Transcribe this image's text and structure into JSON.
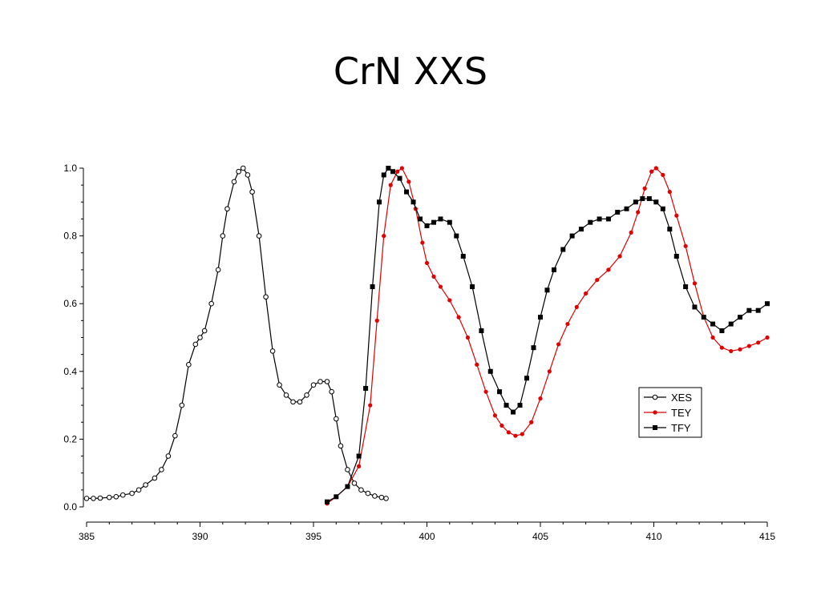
{
  "slide": {
    "title": "CrN XXS"
  },
  "chart_data": {
    "type": "line",
    "title": "",
    "xlabel": "",
    "ylabel": "",
    "xlim": [
      385,
      415
    ],
    "ylim": [
      0,
      1.0
    ],
    "x_ticks": [
      385,
      390,
      395,
      400,
      405,
      410,
      415
    ],
    "y_ticks": [
      "0.0",
      "0.2",
      "0.4",
      "0.6",
      "0.8",
      "1.0"
    ],
    "grid": false,
    "legend": "right",
    "series": [
      {
        "name": "XES",
        "color": "#000000",
        "marker": "open-circle",
        "x": [
          385.0,
          385.3,
          385.6,
          386.0,
          386.3,
          386.6,
          387.0,
          387.3,
          387.6,
          388.0,
          388.3,
          388.6,
          388.9,
          389.2,
          389.5,
          389.8,
          390.0,
          390.2,
          390.5,
          390.8,
          391.0,
          391.2,
          391.5,
          391.7,
          391.9,
          392.1,
          392.3,
          392.6,
          392.9,
          393.2,
          393.5,
          393.8,
          394.1,
          394.4,
          394.7,
          395.0,
          395.3,
          395.6,
          395.8,
          396.0,
          396.2,
          396.5,
          396.8,
          397.1,
          397.4,
          397.7,
          398.0,
          398.2
        ],
        "y": [
          0.025,
          0.025,
          0.026,
          0.028,
          0.03,
          0.035,
          0.04,
          0.05,
          0.065,
          0.085,
          0.11,
          0.15,
          0.21,
          0.3,
          0.42,
          0.48,
          0.5,
          0.52,
          0.6,
          0.7,
          0.8,
          0.88,
          0.96,
          0.99,
          1.0,
          0.98,
          0.93,
          0.8,
          0.62,
          0.46,
          0.36,
          0.33,
          0.31,
          0.31,
          0.33,
          0.36,
          0.37,
          0.37,
          0.34,
          0.26,
          0.18,
          0.11,
          0.07,
          0.05,
          0.04,
          0.032,
          0.028,
          0.025
        ]
      },
      {
        "name": "TEY",
        "color": "#e00000",
        "marker": "filled-circle",
        "x": [
          395.6,
          396.0,
          396.5,
          397.0,
          397.5,
          397.8,
          398.1,
          398.4,
          398.7,
          398.9,
          399.2,
          399.5,
          399.8,
          400.0,
          400.3,
          400.6,
          401.0,
          401.4,
          401.8,
          402.2,
          402.6,
          403.0,
          403.3,
          403.6,
          403.9,
          404.2,
          404.6,
          405.0,
          405.4,
          405.8,
          406.2,
          406.6,
          407.0,
          407.5,
          408.0,
          408.5,
          409.0,
          409.3,
          409.6,
          409.9,
          410.1,
          410.4,
          410.7,
          411.0,
          411.4,
          411.8,
          412.2,
          412.6,
          413.0,
          413.4,
          413.8,
          414.2,
          414.6,
          415.0
        ],
        "y": [
          0.01,
          0.03,
          0.06,
          0.12,
          0.3,
          0.55,
          0.8,
          0.95,
          0.99,
          1.0,
          0.96,
          0.88,
          0.78,
          0.72,
          0.68,
          0.65,
          0.61,
          0.56,
          0.5,
          0.42,
          0.34,
          0.27,
          0.24,
          0.22,
          0.21,
          0.215,
          0.25,
          0.32,
          0.4,
          0.48,
          0.54,
          0.59,
          0.63,
          0.67,
          0.7,
          0.74,
          0.81,
          0.87,
          0.94,
          0.99,
          1.0,
          0.98,
          0.93,
          0.86,
          0.77,
          0.66,
          0.56,
          0.5,
          0.47,
          0.46,
          0.465,
          0.475,
          0.485,
          0.5
        ]
      },
      {
        "name": "TFY",
        "color": "#000000",
        "marker": "filled-square",
        "x": [
          395.6,
          396.0,
          396.5,
          397.0,
          397.3,
          397.6,
          397.9,
          398.1,
          398.3,
          398.5,
          398.8,
          399.1,
          399.4,
          399.7,
          400.0,
          400.3,
          400.6,
          401.0,
          401.3,
          401.6,
          402.0,
          402.4,
          402.8,
          403.2,
          403.5,
          403.8,
          404.1,
          404.4,
          404.7,
          405.0,
          405.3,
          405.6,
          406.0,
          406.4,
          406.8,
          407.2,
          407.6,
          408.0,
          408.4,
          408.8,
          409.2,
          409.5,
          409.8,
          410.1,
          410.4,
          410.7,
          411.0,
          411.4,
          411.8,
          412.2,
          412.6,
          413.0,
          413.4,
          413.8,
          414.2,
          414.6,
          415.0
        ],
        "y": [
          0.015,
          0.03,
          0.06,
          0.15,
          0.35,
          0.65,
          0.9,
          0.98,
          1.0,
          0.99,
          0.97,
          0.93,
          0.9,
          0.85,
          0.83,
          0.84,
          0.85,
          0.84,
          0.8,
          0.74,
          0.65,
          0.52,
          0.4,
          0.34,
          0.3,
          0.28,
          0.3,
          0.38,
          0.47,
          0.56,
          0.64,
          0.7,
          0.76,
          0.8,
          0.82,
          0.84,
          0.85,
          0.85,
          0.87,
          0.88,
          0.9,
          0.91,
          0.91,
          0.9,
          0.88,
          0.82,
          0.74,
          0.65,
          0.59,
          0.56,
          0.54,
          0.52,
          0.54,
          0.56,
          0.58,
          0.58,
          0.6
        ]
      }
    ]
  }
}
